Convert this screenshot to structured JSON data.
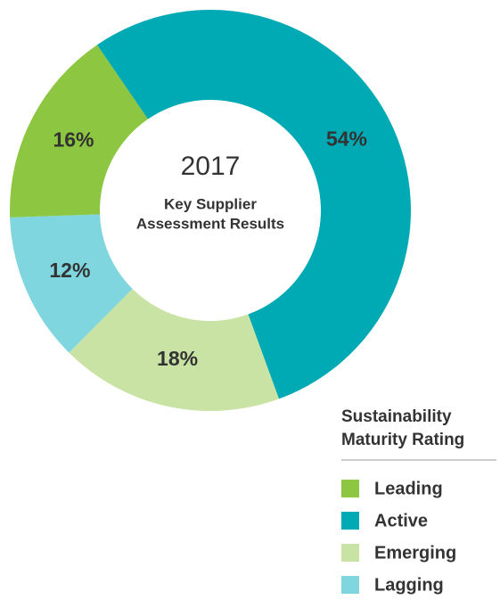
{
  "chart_data": {
    "type": "donut",
    "center_year": "2017",
    "center_title": [
      "Key Supplier",
      "Assessment Results"
    ],
    "categories": [
      "Active",
      "Emerging",
      "Lagging",
      "Leading"
    ],
    "values": [
      54,
      18,
      12,
      16
    ],
    "value_labels": [
      "54%",
      "18%",
      "12%",
      "16%"
    ],
    "colors": [
      "#00aab5",
      "#c8e3a3",
      "#7fd6df",
      "#8dc641"
    ],
    "legend_title": [
      "Sustainability",
      "Maturity Rating"
    ],
    "legend_order": [
      3,
      0,
      1,
      2
    ]
  }
}
